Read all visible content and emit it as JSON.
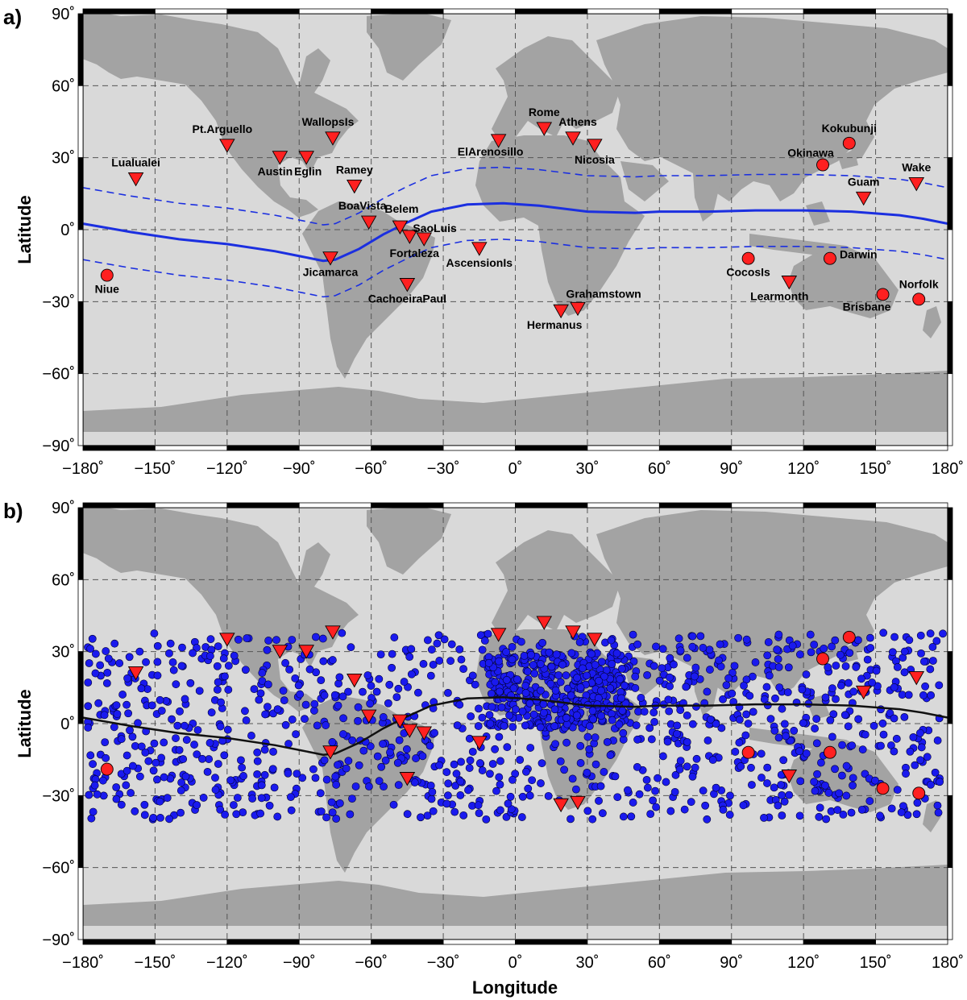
{
  "colors": {
    "ocean": "#d9d9d9",
    "land": "#a3a3a3",
    "grid": "#555555",
    "station_fill": "#ff2020",
    "dot_fill": "#1a1aee",
    "equator_a": "#1b2fe0",
    "equator_b": "#111111"
  },
  "panel_a": {
    "label": "a)",
    "ylabel": "Latitude",
    "xlabel": ""
  },
  "panel_b": {
    "label": "b)",
    "ylabel": "Latitude",
    "xlabel": "Longitude"
  },
  "chart_data": [
    {
      "type": "map",
      "panel": "a",
      "xlim": [
        -180,
        180
      ],
      "ylim": [
        -90,
        90
      ],
      "grid": true,
      "x_ticks": [
        "−180˚",
        "−150˚",
        "−120˚",
        "−90˚",
        "−60˚",
        "−30˚",
        "0˚",
        "30˚",
        "60˚",
        "90˚",
        "120˚",
        "150˚",
        "180˚"
      ],
      "y_ticks": [
        "90˚",
        "60˚",
        "30˚",
        "0˚",
        "−30˚",
        "−60˚",
        "−90˚"
      ],
      "x_tick_values": [
        -180,
        -150,
        -120,
        -90,
        -60,
        -30,
        0,
        30,
        60,
        90,
        120,
        150,
        180
      ],
      "y_tick_values": [
        90,
        60,
        30,
        0,
        -30,
        -60,
        -90
      ],
      "dip_equator": [
        [
          -180,
          2.5
        ],
        [
          -160,
          -1
        ],
        [
          -140,
          -4
        ],
        [
          -120,
          -6
        ],
        [
          -100,
          -9
        ],
        [
          -90,
          -11
        ],
        [
          -80,
          -13
        ],
        [
          -75,
          -12.5
        ],
        [
          -65,
          -8
        ],
        [
          -55,
          -2
        ],
        [
          -45,
          3
        ],
        [
          -35,
          7.5
        ],
        [
          -20,
          10.5
        ],
        [
          -5,
          11
        ],
        [
          10,
          10
        ],
        [
          30,
          7.5
        ],
        [
          50,
          7
        ],
        [
          60,
          7.5
        ],
        [
          80,
          7.5
        ],
        [
          100,
          8
        ],
        [
          120,
          8
        ],
        [
          140,
          7.5
        ],
        [
          160,
          6
        ],
        [
          170,
          4.5
        ],
        [
          180,
          2.5
        ]
      ],
      "dip_offsets": [
        15,
        -15
      ],
      "stations_triangle": [
        {
          "name": "Lualualei",
          "lon": -158,
          "lat": 21,
          "label_dx": 0,
          "label_dy": -16,
          "anchor": "middle"
        },
        {
          "name": "Pt.Arguello",
          "lon": -120,
          "lat": 35,
          "label_dx": -6,
          "label_dy": -16,
          "anchor": "middle"
        },
        {
          "name": "WallopsIs",
          "lon": -76,
          "lat": 38,
          "label_dx": -6,
          "label_dy": -16,
          "anchor": "middle"
        },
        {
          "name": "Austin",
          "lon": -98,
          "lat": 30,
          "label_dx": -6,
          "label_dy": 22,
          "anchor": "middle"
        },
        {
          "name": "Eglin",
          "lon": -87,
          "lat": 30,
          "label_dx": 2,
          "label_dy": 22,
          "anchor": "middle"
        },
        {
          "name": "Ramey",
          "lon": -67,
          "lat": 18,
          "label_dx": 0,
          "label_dy": -16,
          "anchor": "middle"
        },
        {
          "name": "BoaVista",
          "lon": -61,
          "lat": 3,
          "label_dx": -8,
          "label_dy": -16,
          "anchor": "middle"
        },
        {
          "name": "Belem",
          "lon": -48,
          "lat": 1,
          "label_dx": 2,
          "label_dy": -18,
          "anchor": "middle"
        },
        {
          "name": "SaoLuis",
          "lon": -44,
          "lat": -3,
          "label_dx": 4,
          "label_dy": -6,
          "anchor": "start"
        },
        {
          "name": "Fortaleza",
          "lon": -38,
          "lat": -4,
          "label_dx": -12,
          "label_dy": 22,
          "anchor": "middle"
        },
        {
          "name": "Jicamarca",
          "lon": -77,
          "lat": -12,
          "label_dx": 0,
          "label_dy": 22,
          "anchor": "middle"
        },
        {
          "name": "CachoeiraPaul",
          "lon": -45,
          "lat": -23,
          "label_dx": 0,
          "label_dy": 22,
          "anchor": "middle"
        },
        {
          "name": "AscensionIs",
          "lon": -15,
          "lat": -8,
          "label_dx": 0,
          "label_dy": 22,
          "anchor": "middle"
        },
        {
          "name": "ElArenosillo",
          "lon": -7,
          "lat": 37,
          "label_dx": -10,
          "label_dy": 18,
          "anchor": "middle"
        },
        {
          "name": "Rome",
          "lon": 12,
          "lat": 42,
          "label_dx": 0,
          "label_dy": -16,
          "anchor": "middle"
        },
        {
          "name": "Athens",
          "lon": 24,
          "lat": 38,
          "label_dx": 6,
          "label_dy": -16,
          "anchor": "middle"
        },
        {
          "name": "Nicosia",
          "lon": 33,
          "lat": 35,
          "label_dx": 0,
          "label_dy": 22,
          "anchor": "middle"
        },
        {
          "name": "Hermanus",
          "lon": 19,
          "lat": -34,
          "label_dx": -8,
          "label_dy": 22,
          "anchor": "middle"
        },
        {
          "name": "Grahamstown",
          "lon": 26,
          "lat": -33,
          "label_dx": 32,
          "label_dy": -14,
          "anchor": "middle"
        },
        {
          "name": "Learmonth",
          "lon": 114,
          "lat": -22,
          "label_dx": -12,
          "label_dy": 22,
          "anchor": "middle"
        },
        {
          "name": "Guam",
          "lon": 145,
          "lat": 13,
          "label_dx": 0,
          "label_dy": -16,
          "anchor": "middle"
        },
        {
          "name": "Wake",
          "lon": 167,
          "lat": 19,
          "label_dx": 0,
          "label_dy": -16,
          "anchor": "middle"
        }
      ],
      "stations_circle": [
        {
          "name": "Niue",
          "lon": -170,
          "lat": -19,
          "label_dx": 0,
          "label_dy": 22,
          "anchor": "middle"
        },
        {
          "name": "Kokubunji",
          "lon": 139,
          "lat": 36,
          "label_dx": 0,
          "label_dy": -14,
          "anchor": "middle"
        },
        {
          "name": "Okinawa",
          "lon": 128,
          "lat": 27,
          "label_dx": -15,
          "label_dy": -10,
          "anchor": "middle"
        },
        {
          "name": "CocosIs",
          "lon": 97,
          "lat": -12,
          "label_dx": 0,
          "label_dy": 22,
          "anchor": "middle"
        },
        {
          "name": "Darwin",
          "lon": 131,
          "lat": -12,
          "label_dx": 12,
          "label_dy": 0,
          "anchor": "start"
        },
        {
          "name": "Brisbane",
          "lon": 153,
          "lat": -27,
          "label_dx": -20,
          "label_dy": 20,
          "anchor": "middle"
        },
        {
          "name": "Norfolk",
          "lon": 168,
          "lat": -29,
          "label_dx": 0,
          "label_dy": -14,
          "anchor": "middle"
        }
      ]
    },
    {
      "type": "map",
      "panel": "b",
      "xlim": [
        -180,
        180
      ],
      "ylim": [
        -90,
        90
      ],
      "grid": true,
      "x_ticks": [
        "−180˚",
        "−150˚",
        "−120˚",
        "−90˚",
        "−60˚",
        "−30˚",
        "0˚",
        "30˚",
        "60˚",
        "90˚",
        "120˚",
        "150˚",
        "180˚"
      ],
      "y_ticks": [
        "90˚",
        "60˚",
        "30˚",
        "0˚",
        "−30˚",
        "−60˚",
        "−90˚"
      ],
      "x_tick_values": [
        -180,
        -150,
        -120,
        -90,
        -60,
        -30,
        0,
        30,
        60,
        90,
        120,
        150,
        180
      ],
      "y_tick_values": [
        90,
        60,
        30,
        0,
        -30,
        -60,
        -90
      ],
      "dip_equator": [
        [
          -180,
          2.5
        ],
        [
          -160,
          -1
        ],
        [
          -140,
          -4
        ],
        [
          -120,
          -6
        ],
        [
          -100,
          -9
        ],
        [
          -90,
          -11
        ],
        [
          -80,
          -13
        ],
        [
          -75,
          -12.5
        ],
        [
          -65,
          -8
        ],
        [
          -55,
          -2
        ],
        [
          -45,
          3
        ],
        [
          -35,
          7.5
        ],
        [
          -20,
          10.5
        ],
        [
          -5,
          11
        ],
        [
          10,
          10
        ],
        [
          30,
          7.5
        ],
        [
          50,
          7
        ],
        [
          60,
          7.5
        ],
        [
          80,
          7.5
        ],
        [
          100,
          8
        ],
        [
          120,
          8
        ],
        [
          140,
          7.5
        ],
        [
          160,
          6
        ],
        [
          170,
          4.5
        ],
        [
          180,
          2.5
        ]
      ],
      "scatter_seed": 7,
      "scatter_count_uniform": 1150,
      "scatter_count_africa": 320,
      "scatter_lat_range": [
        -40,
        38
      ]
    }
  ]
}
